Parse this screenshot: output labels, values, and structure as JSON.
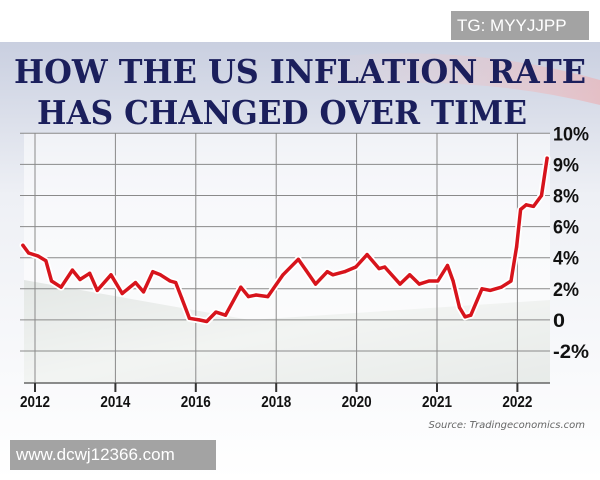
{
  "overlays": {
    "top_tag": "TG: MYYJJPP",
    "bottom_watermark": "www.dcwj12366.com"
  },
  "chart_data": {
    "type": "line",
    "title_line1": "HOW THE US INFLATION RATE",
    "title_line2": "HAS CHANGED OVER TIME",
    "source": "Source: Tradingeconomics.com",
    "xlabel": "",
    "ylabel": "",
    "x_ticks": [
      {
        "value": 2012,
        "label": "2012"
      },
      {
        "value": 2014,
        "label": "2014"
      },
      {
        "value": 2016,
        "label": "2016"
      },
      {
        "value": 2018,
        "label": "2018"
      },
      {
        "value": 2020,
        "label": "2020"
      },
      {
        "value": 2021,
        "label": "2021"
      },
      {
        "value": 2022,
        "label": "2022"
      }
    ],
    "y_ticks": [
      {
        "value": -2,
        "label": "-2%"
      },
      {
        "value": 0,
        "label": "0"
      },
      {
        "value": 2,
        "label": "2%"
      },
      {
        "value": 4,
        "label": "4%"
      },
      {
        "value": 6,
        "label": "6%"
      },
      {
        "value": 8,
        "label": "8%"
      },
      {
        "value": 9,
        "label": "9%"
      },
      {
        "value": 10,
        "label": "10%"
      }
    ],
    "grid": true,
    "colors": {
      "line": "#d7141c",
      "title": "#1b1f5c",
      "grid": "#8a8a8a"
    },
    "series": [
      {
        "name": "US inflation rate (%)",
        "x": [
          2011.7,
          2011.84,
          2012.08,
          2012.27,
          2012.41,
          2012.65,
          2012.93,
          2013.12,
          2013.36,
          2013.55,
          2013.89,
          2014.17,
          2014.5,
          2014.7,
          2014.93,
          2015.12,
          2015.36,
          2015.5,
          2015.65,
          2015.84,
          2016.08,
          2016.27,
          2016.5,
          2016.74,
          2017.12,
          2017.31,
          2017.5,
          2017.79,
          2018.17,
          2018.55,
          2018.74,
          2018.98,
          2019.27,
          2019.41,
          2019.7,
          2019.98,
          2020.13,
          2020.28,
          2020.35,
          2020.54,
          2020.66,
          2020.78,
          2020.9,
          2021.01,
          2021.13,
          2021.2,
          2021.28,
          2021.35,
          2021.42,
          2021.56,
          2021.66,
          2021.8,
          2021.92,
          2021.99,
          2022.04,
          2022.11,
          2022.2,
          2022.3,
          2022.37
        ],
        "y": [
          4.8,
          4.3,
          4.1,
          3.8,
          2.5,
          2.1,
          3.2,
          2.6,
          3.0,
          1.9,
          2.9,
          1.7,
          2.4,
          1.8,
          3.1,
          2.9,
          2.5,
          2.4,
          1.4,
          0.1,
          0.0,
          -0.1,
          0.5,
          0.3,
          2.1,
          1.5,
          1.6,
          1.5,
          2.9,
          3.9,
          3.2,
          2.3,
          3.1,
          2.9,
          3.1,
          3.4,
          4.2,
          3.3,
          3.4,
          2.3,
          2.9,
          2.3,
          2.5,
          2.5,
          3.5,
          2.5,
          0.8,
          0.2,
          0.3,
          2.0,
          1.9,
          2.1,
          2.5,
          4.7,
          7.1,
          7.4,
          7.3,
          8.0,
          9.2
        ]
      }
    ]
  }
}
